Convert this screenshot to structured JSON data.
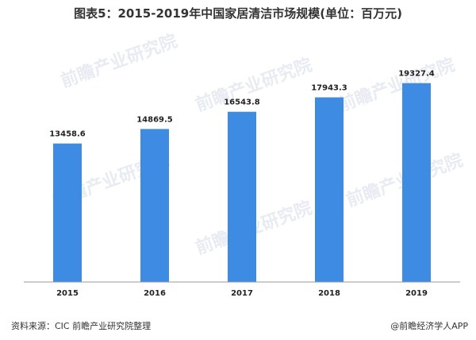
{
  "title": "图表5：2015-2019年中国家居清洁市场规模(单位：百万元)",
  "watermark": "前瞻产业研究院",
  "source": "资料来源：CIC 前瞻产业研究院整理",
  "credit": "@前瞻经济学人APP",
  "chart_data": {
    "type": "bar",
    "title": "图表5：2015-2019年中国家居清洁市场规模(单位：百万元)",
    "categories": [
      "2015",
      "2016",
      "2017",
      "2018",
      "2019"
    ],
    "values": [
      13458.6,
      14869.5,
      16543.8,
      17943.3,
      19327.4
    ],
    "value_labels": [
      "13458.6",
      "14869.5",
      "16543.8",
      "17943.3",
      "19327.4"
    ],
    "ylim": [
      0,
      22000
    ],
    "xlabel": "",
    "ylabel": "",
    "grid": false,
    "color": "#3d8be3"
  }
}
